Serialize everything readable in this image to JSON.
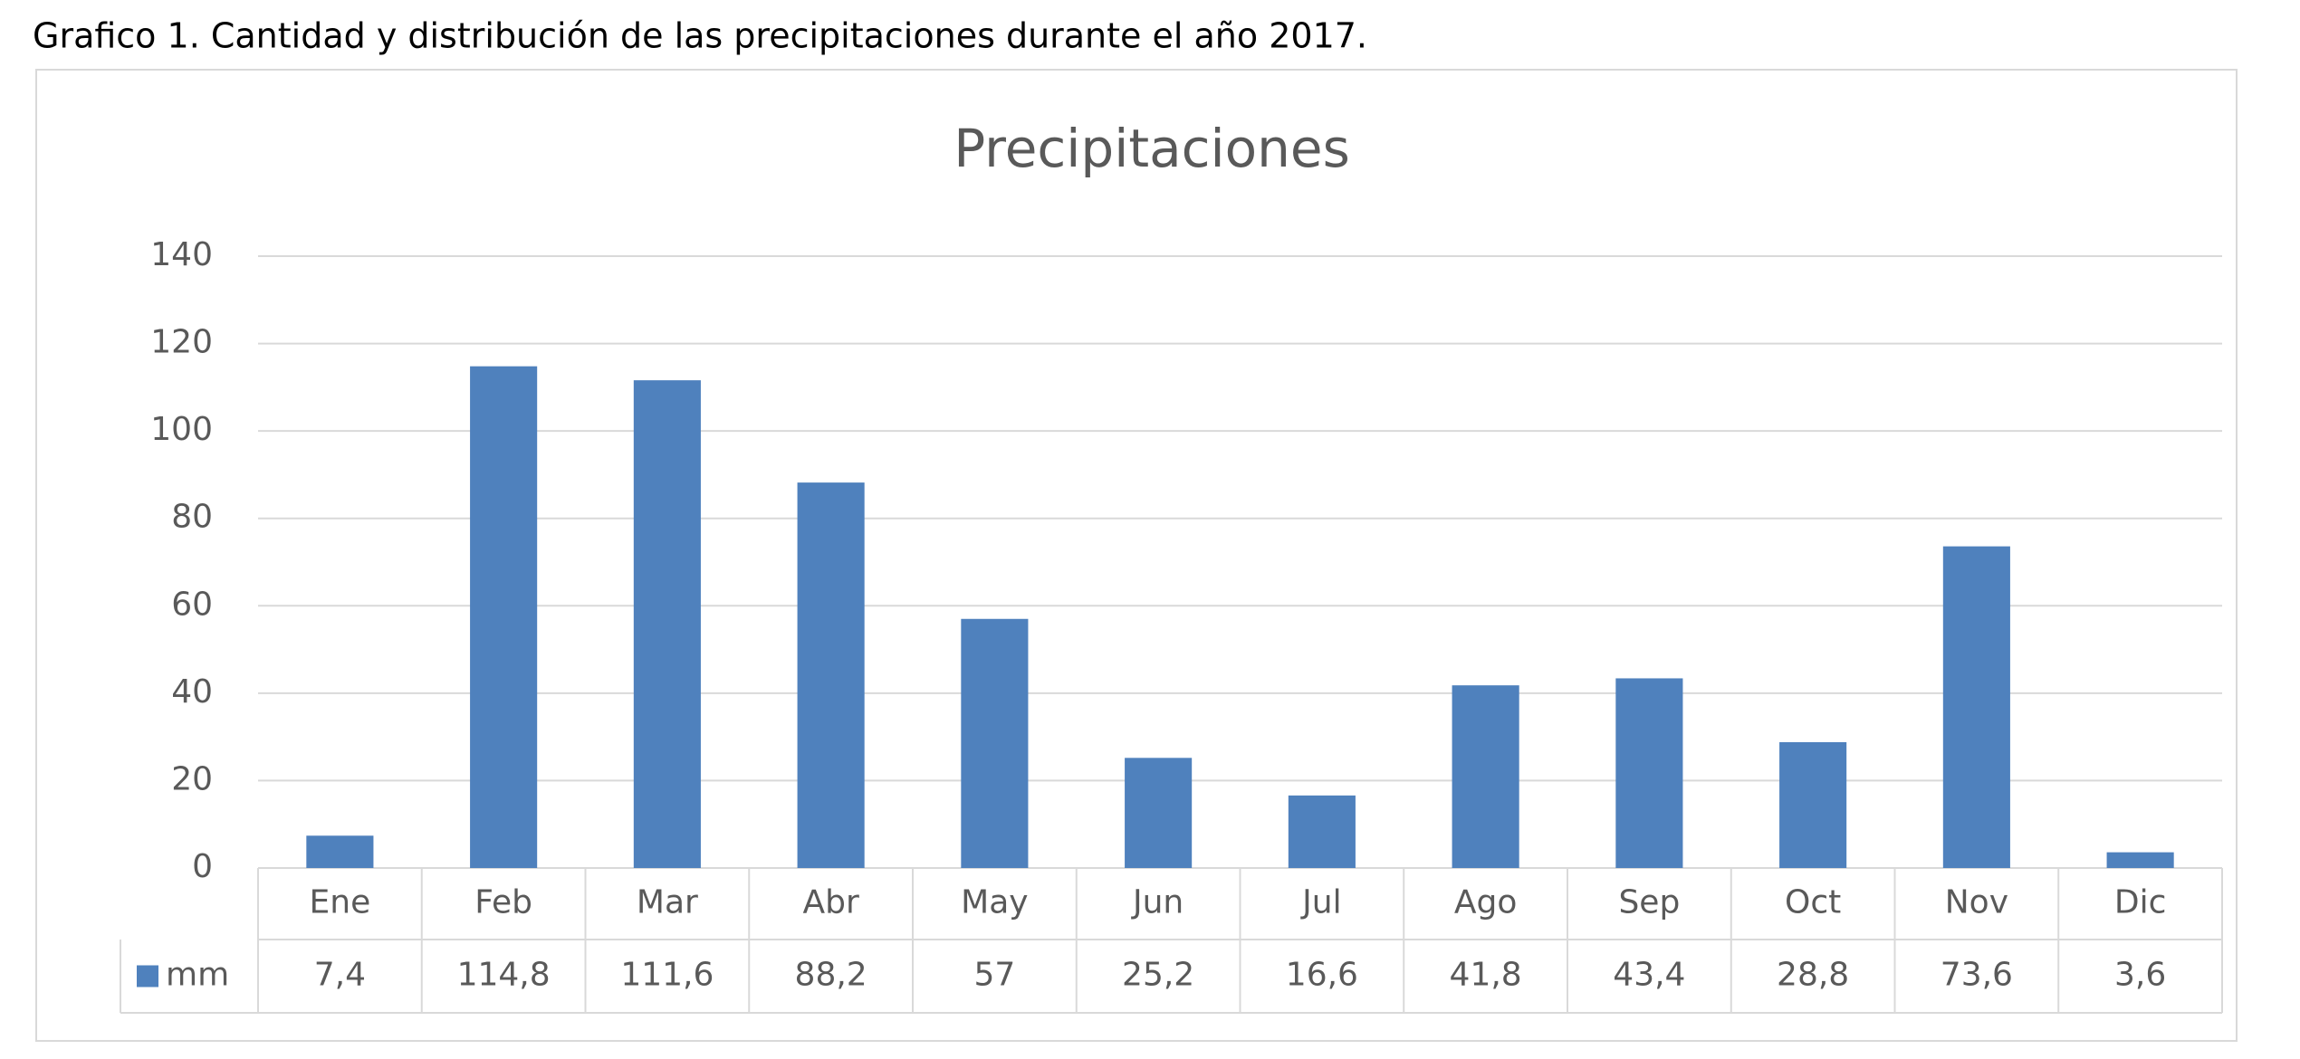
{
  "caption": "Grafico 1. Cantidad  y distribución de las precipitaciones durante el año 2017.",
  "chart_data": {
    "type": "bar",
    "title": "Precipitaciones",
    "categories": [
      "Ene",
      "Feb",
      "Mar",
      "Abr",
      "May",
      "Jun",
      "Jul",
      "Ago",
      "Sep",
      "Oct",
      "Nov",
      "Dic"
    ],
    "series": [
      {
        "name": "mm",
        "color": "#4f81bd",
        "values": [
          7.4,
          114.8,
          111.6,
          88.2,
          57,
          25.2,
          16.6,
          41.8,
          43.4,
          28.8,
          73.6,
          3.6
        ],
        "value_labels": [
          "7,4",
          "114,8",
          "111,6",
          "88,2",
          "57",
          "25,2",
          "16,6",
          "41,8",
          "43,4",
          "28,8",
          "73,6",
          "3,6"
        ]
      }
    ],
    "ylim": [
      0,
      140
    ],
    "yticks": [
      0,
      20,
      40,
      60,
      80,
      100,
      120,
      140
    ],
    "grid": true
  }
}
